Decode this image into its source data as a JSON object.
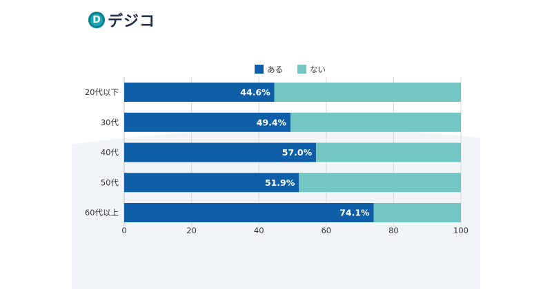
{
  "logo": {
    "mark": "D",
    "text": "デジコ"
  },
  "chart_data": {
    "type": "bar",
    "orientation": "horizontal",
    "stacked": true,
    "categories": [
      "20代以下",
      "30代",
      "40代",
      "50代",
      "60代以上"
    ],
    "series": [
      {
        "name": "ある",
        "color": "#0f5ea8",
        "values": [
          44.6,
          49.4,
          57.0,
          51.9,
          74.1
        ]
      },
      {
        "name": "ない",
        "color": "#74c6c2",
        "values": [
          55.4,
          50.6,
          43.0,
          48.1,
          25.9
        ]
      }
    ],
    "data_labels": [
      "44.6%",
      "49.4%",
      "57.0%",
      "51.9%",
      "74.1%"
    ],
    "xlim": [
      0,
      100
    ],
    "xticks": [
      "0",
      "20",
      "40",
      "60",
      "80",
      "100"
    ],
    "grid": true,
    "legend_position": "top"
  }
}
